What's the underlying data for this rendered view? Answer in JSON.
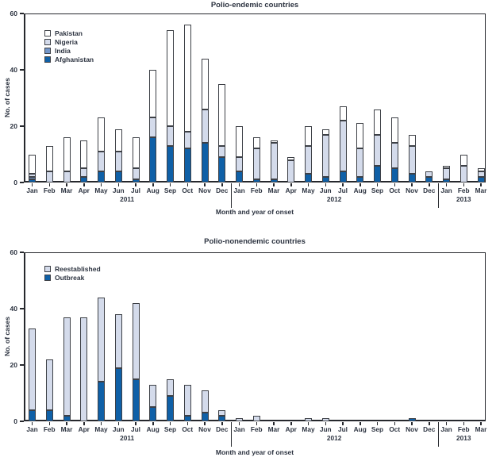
{
  "axis": {
    "x_label": "Month and year of onset",
    "y_label": "No. of cases",
    "years": [
      {
        "label": "2011",
        "position": 5.5
      },
      {
        "label": "2012",
        "position": 17.5
      },
      {
        "label": "2013",
        "position": 25
      }
    ],
    "dividers": [
      11.5,
      23.5
    ]
  },
  "colors": {
    "dark_blue": "#0f60a7",
    "medium_blue": "#7396c9",
    "light_blue": "#d4dbeb",
    "white": "#ffffff"
  },
  "chart_data": [
    {
      "type": "bar",
      "stacked": true,
      "title": "Polio-endemic countries",
      "xlabel": "Month and year of onset",
      "ylabel": "No. of cases",
      "ylim": [
        0,
        60
      ],
      "yticks": [
        0,
        20,
        40,
        60
      ],
      "legend_position": "upper-left",
      "categories": [
        "Jan",
        "Feb",
        "Mar",
        "Apr",
        "May",
        "Jun",
        "Jul",
        "Aug",
        "Sep",
        "Oct",
        "Nov",
        "Dec",
        "Jan",
        "Feb",
        "Mar",
        "Apr",
        "May",
        "Jun",
        "Jul",
        "Aug",
        "Sep",
        "Oct",
        "Nov",
        "Dec",
        "Jan",
        "Feb",
        "Mar"
      ],
      "series": [
        {
          "name": "Afghanistan",
          "color": "#0f60a7",
          "values": [
            1,
            0,
            0,
            2,
            4,
            4,
            1,
            16,
            13,
            12,
            14,
            9,
            4,
            1,
            1,
            0,
            3,
            2,
            4,
            2,
            6,
            5,
            3,
            2,
            1,
            0,
            2
          ]
        },
        {
          "name": "India",
          "color": "#7396c9",
          "values": [
            1,
            0,
            0,
            0,
            0,
            0,
            0,
            0,
            0,
            0,
            0,
            0,
            0,
            0,
            0,
            0,
            0,
            0,
            0,
            0,
            0,
            0,
            0,
            0,
            0,
            0,
            0
          ]
        },
        {
          "name": "Nigeria",
          "color": "#d4dbeb",
          "pattern": "dots",
          "values": [
            1,
            4,
            4,
            3,
            7,
            7,
            4,
            7,
            7,
            6,
            12,
            4,
            5,
            11,
            13,
            8,
            10,
            15,
            18,
            10,
            11,
            9,
            10,
            2,
            4,
            6,
            2
          ]
        },
        {
          "name": "Pakistan",
          "color": "#ffffff",
          "values": [
            7,
            9,
            12,
            10,
            12,
            8,
            11,
            17,
            34,
            38,
            18,
            22,
            11,
            4,
            1,
            1,
            7,
            2,
            5,
            9,
            9,
            9,
            4,
            0,
            1,
            4,
            1
          ]
        }
      ]
    },
    {
      "type": "bar",
      "stacked": true,
      "title": "Polio-nonendemic countries",
      "xlabel": "Month and year of onset",
      "ylabel": "No. of cases",
      "ylim": [
        0,
        60
      ],
      "yticks": [
        0,
        20,
        40,
        60
      ],
      "legend_position": "upper-left",
      "categories": [
        "Jan",
        "Feb",
        "Mar",
        "Apr",
        "May",
        "Jun",
        "Jul",
        "Aug",
        "Sep",
        "Oct",
        "Nov",
        "Dec",
        "Jan",
        "Feb",
        "Mar",
        "Apr",
        "May",
        "Jun",
        "Jul",
        "Aug",
        "Sep",
        "Oct",
        "Nov",
        "Dec",
        "Jan",
        "Feb",
        "Mar"
      ],
      "series": [
        {
          "name": "Outbreak",
          "color": "#0f60a7",
          "values": [
            4,
            4,
            2,
            0,
            14,
            19,
            15,
            5,
            9,
            2,
            3,
            2,
            0,
            0,
            0,
            0,
            0,
            0,
            0,
            0,
            0,
            0,
            1,
            0,
            0,
            0,
            0
          ]
        },
        {
          "name": "Reestablished",
          "color": "#d4dbeb",
          "pattern": "dots",
          "values": [
            29,
            18,
            35,
            37,
            30,
            19,
            27,
            8,
            6,
            11,
            8,
            2,
            1,
            2,
            0,
            0,
            1,
            1,
            0,
            0,
            0,
            0,
            0,
            0,
            0,
            0,
            0
          ]
        }
      ]
    }
  ]
}
